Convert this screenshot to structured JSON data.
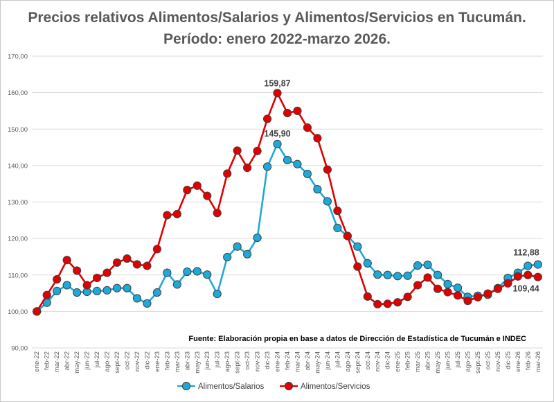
{
  "chart_data": {
    "type": "line",
    "title": "Precios relativos Alimentos/Salarios y Alimentos/Servicios en Tucumán. Período: enero 2022-marzo 2026.",
    "ylim": [
      90,
      170
    ],
    "yticks": [
      "90,00",
      "100,00",
      "110,00",
      "120,00",
      "130,00",
      "140,00",
      "150,00",
      "160,00",
      "170,00"
    ],
    "grid": true,
    "legend_position": "bottom",
    "categories": [
      "ene-22",
      "feb-22",
      "mar-22",
      "abr-22",
      "may-22",
      "jun-22",
      "jul-22",
      "ago-22",
      "sept-22",
      "oct-22",
      "nov-22",
      "dic-22",
      "ene-23",
      "feb-23",
      "mar-23",
      "abr-23",
      "may-23",
      "jun-23",
      "jul-23",
      "ago-23",
      "sept-23",
      "oct-23",
      "nov-23",
      "dic-23",
      "ene-24",
      "feb-24",
      "mar-24",
      "abr-24",
      "may-24",
      "jun-24",
      "jul-24",
      "ago-24",
      "sept-24",
      "oct-24",
      "nov-24",
      "dic-24",
      "ene-25",
      "feb-25",
      "mar-25",
      "abr-25",
      "may-25",
      "jun-25",
      "jul-25",
      "ago-25",
      "sept-25",
      "oct-25",
      "nov-25",
      "dic-25",
      "ene-26",
      "feb-26",
      "mar-26"
    ],
    "series": [
      {
        "name": "Alimentos/Salarios",
        "color": "#1FA8D8",
        "values": [
          100.0,
          102.4,
          105.6,
          107.2,
          105.2,
          105.4,
          105.6,
          105.8,
          106.4,
          106.4,
          103.6,
          102.2,
          105.2,
          110.6,
          107.4,
          110.9,
          111.0,
          110.1,
          104.8,
          114.9,
          117.8,
          115.7,
          120.2,
          139.7,
          145.9,
          141.5,
          140.4,
          137.7,
          133.5,
          130.2,
          122.9,
          120.7,
          117.8,
          113.2,
          110.1,
          110.0,
          109.7,
          109.8,
          112.6,
          112.8,
          110.0,
          107.5,
          106.5,
          104.0,
          104.3,
          104.6,
          106.4,
          109.2,
          110.6,
          112.5,
          112.88
        ]
      },
      {
        "name": "Alimentos/Servicios",
        "color": "#E00000",
        "values": [
          100.0,
          104.5,
          108.8,
          114.1,
          111.2,
          107.2,
          109.2,
          110.6,
          113.4,
          114.5,
          112.9,
          112.5,
          117.1,
          126.4,
          126.7,
          133.3,
          134.5,
          131.7,
          127.0,
          137.8,
          144.1,
          139.4,
          144.0,
          152.8,
          159.87,
          154.4,
          155.0,
          150.4,
          147.5,
          138.9,
          127.6,
          120.7,
          112.3,
          104.1,
          102.0,
          102.1,
          102.5,
          104.0,
          107.2,
          109.3,
          106.2,
          105.3,
          104.4,
          102.9,
          103.9,
          104.9,
          106.2,
          107.7,
          109.6,
          110.0,
          109.44
        ]
      }
    ],
    "annotations": [
      {
        "text": "159,87",
        "series": 1,
        "index": 24
      },
      {
        "text": "145,90",
        "series": 0,
        "index": 24
      },
      {
        "text": "112,88",
        "series": 0,
        "index": 50
      },
      {
        "text": "109,44",
        "series": 1,
        "index": 50
      }
    ],
    "source_note": "Fuente: Elaboración propia en base a datos de Dirección de Estadística de Tucumán e INDEC"
  }
}
